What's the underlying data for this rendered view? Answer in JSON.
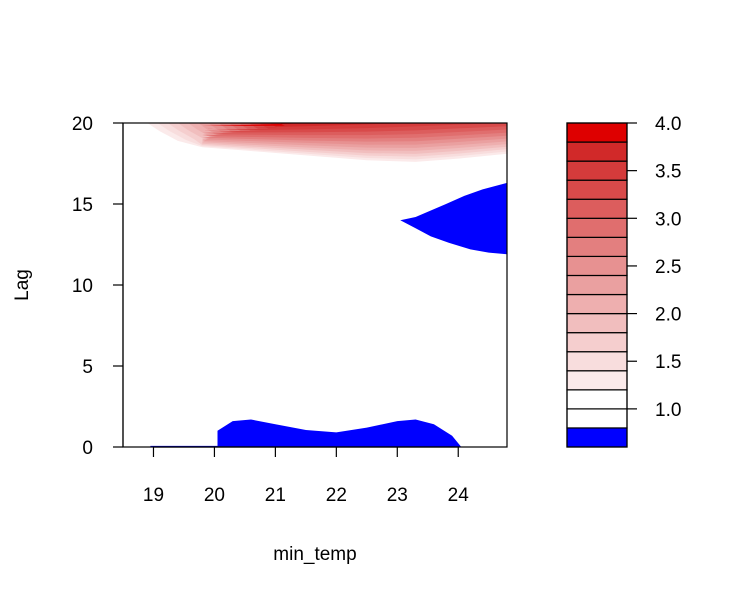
{
  "chart_data": {
    "type": "heatmap",
    "title": "",
    "xlabel": "min_temp",
    "ylabel": "Lag",
    "xlim": [
      18.5,
      24.8
    ],
    "ylim": [
      0,
      20
    ],
    "x_ticks": [
      19,
      20,
      21,
      22,
      23,
      24
    ],
    "y_ticks": [
      0,
      5,
      10,
      15,
      20
    ],
    "grid": false,
    "legend": "right",
    "colorbar": {
      "range": [
        0.6,
        4.0
      ],
      "break_step": 0.2,
      "tick_values": [
        1.0,
        1.5,
        2.0,
        2.5,
        3.0,
        3.5,
        4.0
      ],
      "tick_labels": [
        "1.0",
        "1.5",
        "2.0",
        "2.5",
        "3.0",
        "3.5",
        "4.0"
      ],
      "colors": [
        "#0000ff",
        "#ffffff",
        "#ffffff",
        "#fbeaea",
        "#f8dddd",
        "#f5cece",
        "#f1bebe",
        "#eeafaf",
        "#eaa0a0",
        "#e79191",
        "#e37f7f",
        "#e06e6e",
        "#dc5d5d",
        "#d84a4a",
        "#d53b3b",
        "#d12929",
        "#de0000"
      ]
    },
    "regions": [
      {
        "name": "high-lag-red-band",
        "value_range": [
          1.0,
          4.0
        ],
        "max_value_at": {
          "x": 24.8,
          "y": 20
        },
        "boundary": [
          {
            "x": 18.9,
            "y": 20
          },
          {
            "x": 19.1,
            "y": 19.5
          },
          {
            "x": 19.4,
            "y": 18.9
          },
          {
            "x": 19.8,
            "y": 18.5
          },
          {
            "x": 20.5,
            "y": 18.3
          },
          {
            "x": 21.5,
            "y": 18.0
          },
          {
            "x": 22.5,
            "y": 17.7
          },
          {
            "x": 23.3,
            "y": 17.6
          },
          {
            "x": 24.0,
            "y": 17.8
          },
          {
            "x": 24.8,
            "y": 18.1
          }
        ]
      },
      {
        "name": "lag-13-blue-region",
        "value_range": [
          0.6,
          0.8
        ],
        "boundary": [
          {
            "x": 23.05,
            "y": 14.0
          },
          {
            "x": 23.3,
            "y": 13.5
          },
          {
            "x": 23.55,
            "y": 13.0
          },
          {
            "x": 23.85,
            "y": 12.6
          },
          {
            "x": 24.2,
            "y": 12.2
          },
          {
            "x": 24.5,
            "y": 12.0
          },
          {
            "x": 24.8,
            "y": 11.9
          },
          {
            "x": 24.8,
            "y": 16.3
          },
          {
            "x": 24.4,
            "y": 15.9
          },
          {
            "x": 24.1,
            "y": 15.5
          },
          {
            "x": 23.8,
            "y": 15.0
          },
          {
            "x": 23.55,
            "y": 14.6
          },
          {
            "x": 23.3,
            "y": 14.2
          },
          {
            "x": 23.05,
            "y": 14.0
          }
        ]
      },
      {
        "name": "lag-0-blue-region",
        "value_range": [
          0.6,
          0.8
        ],
        "boundary": [
          {
            "x": 20.05,
            "y": 0
          },
          {
            "x": 20.05,
            "y": 1.0
          },
          {
            "x": 20.3,
            "y": 1.6
          },
          {
            "x": 20.6,
            "y": 1.7
          },
          {
            "x": 21.0,
            "y": 1.4
          },
          {
            "x": 21.5,
            "y": 1.05
          },
          {
            "x": 22.0,
            "y": 0.9
          },
          {
            "x": 22.5,
            "y": 1.2
          },
          {
            "x": 23.0,
            "y": 1.6
          },
          {
            "x": 23.3,
            "y": 1.7
          },
          {
            "x": 23.6,
            "y": 1.4
          },
          {
            "x": 23.9,
            "y": 0.7
          },
          {
            "x": 24.05,
            "y": 0
          }
        ]
      }
    ]
  }
}
